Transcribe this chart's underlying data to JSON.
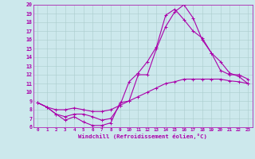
{
  "xlabel": "Windchill (Refroidissement éolien,°C)",
  "bg_color": "#cce8ec",
  "grid_color": "#aacccc",
  "line_color": "#aa00aa",
  "xlim": [
    -0.5,
    23.5
  ],
  "ylim": [
    6,
    20
  ],
  "xticks": [
    0,
    1,
    2,
    3,
    4,
    5,
    6,
    7,
    8,
    9,
    10,
    11,
    12,
    13,
    14,
    15,
    16,
    17,
    18,
    19,
    20,
    21,
    22,
    23
  ],
  "yticks": [
    6,
    7,
    8,
    9,
    10,
    11,
    12,
    13,
    14,
    15,
    16,
    17,
    18,
    19,
    20
  ],
  "line1_x": [
    0,
    1,
    2,
    3,
    4,
    5,
    6,
    7,
    8,
    9,
    10,
    11,
    12,
    13,
    14,
    15,
    16,
    17,
    18,
    19,
    20,
    21,
    22,
    23
  ],
  "line1_y": [
    8.8,
    8.3,
    7.5,
    6.8,
    7.2,
    6.6,
    6.2,
    6.2,
    6.5,
    8.8,
    9.0,
    12.0,
    12.0,
    15.0,
    17.5,
    19.2,
    20.0,
    18.5,
    16.0,
    14.5,
    13.5,
    12.2,
    11.8,
    11.0
  ],
  "line2_x": [
    0,
    1,
    2,
    3,
    4,
    5,
    6,
    7,
    8,
    9,
    10,
    11,
    12,
    13,
    14,
    15,
    16,
    17,
    18,
    19,
    20,
    21,
    22,
    23
  ],
  "line2_y": [
    8.8,
    8.3,
    7.5,
    7.2,
    7.5,
    7.5,
    7.2,
    6.8,
    7.0,
    8.5,
    11.2,
    12.2,
    13.5,
    15.2,
    18.8,
    19.5,
    18.3,
    17.0,
    16.2,
    14.5,
    12.5,
    12.0,
    12.0,
    11.5
  ],
  "line3_x": [
    0,
    1,
    2,
    3,
    4,
    5,
    6,
    7,
    8,
    9,
    10,
    11,
    12,
    13,
    14,
    15,
    16,
    17,
    18,
    19,
    20,
    21,
    22,
    23
  ],
  "line3_y": [
    8.8,
    8.3,
    8.0,
    8.0,
    8.2,
    8.0,
    7.8,
    7.8,
    8.0,
    8.5,
    9.0,
    9.5,
    10.0,
    10.5,
    11.0,
    11.2,
    11.5,
    11.5,
    11.5,
    11.5,
    11.5,
    11.3,
    11.2,
    11.0
  ]
}
